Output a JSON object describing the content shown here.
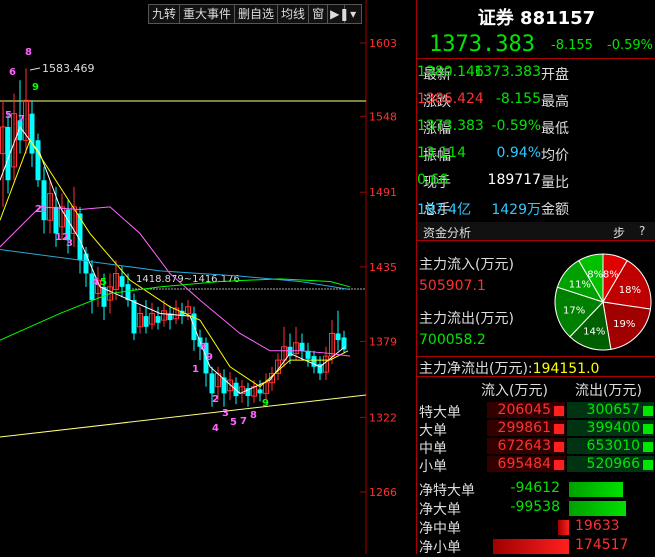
{
  "toolbar": {
    "items": [
      "九转",
      "重大事件",
      "删自选",
      "均线",
      "窗"
    ]
  },
  "chart": {
    "y_ticks": [
      "1603",
      "1548",
      "1491",
      "1435",
      "1379",
      "1322",
      "1266"
    ],
    "high_label": "1583.469",
    "range_label": "1418.879~1416.176",
    "nine_turn_labels": [
      "6",
      "8",
      "5",
      "7",
      "9",
      "1",
      "2",
      "12",
      "3",
      "4",
      "5",
      "8",
      "9",
      "1",
      "2",
      "3",
      "4",
      "5",
      "7",
      "8",
      "9"
    ],
    "colors": {
      "up": "#ff3333",
      "down": "#00ffff",
      "ma5": "#ffffff",
      "ma10": "#ffff00",
      "ma20": "#ff66ff",
      "ma30": "#00ff00",
      "ma60": "#2aa8d8",
      "support": "#ffff80"
    }
  },
  "quote": {
    "title": "证券 881157",
    "price": "1373.383",
    "change": "-8.155",
    "change_pct": "-0.59%",
    "rows": [
      {
        "l1": "最新",
        "v1": "1373.383",
        "l2": "开盘",
        "v2": "1380.146",
        "c1": "green",
        "c2": "green"
      },
      {
        "l1": "涨跌",
        "v1": "-8.155",
        "l2": "最高",
        "v2": "1386.424",
        "c1": "green",
        "c2": "red"
      },
      {
        "l1": "涨幅",
        "v1": "-0.59%",
        "l2": "最低",
        "v2": "1373.383",
        "c1": "green",
        "c2": "green"
      },
      {
        "l1": "振幅",
        "v1": "0.94%",
        "l2": "均价",
        "v2": "13.114",
        "c1": "cyan",
        "c2": "green"
      },
      {
        "l1": "现手",
        "v1": "189717",
        "l2": "量比",
        "v2": "0.66",
        "c1": "white",
        "c2": "green"
      },
      {
        "l1": "总手",
        "v1": "1429万",
        "l2": "金额",
        "v2": "187.4亿",
        "c1": "cyan",
        "c2": "cyan"
      }
    ]
  },
  "fund": {
    "tab_label": "资金分析",
    "tab_right1": "步",
    "tab_right2": "?",
    "inflow_label": "主力流入(万元)",
    "inflow_value": "505907.1",
    "outflow_label": "主力流出(万元)",
    "outflow_value": "700058.2",
    "net_label": "主力净流出(万元):",
    "net_value": "194151.0",
    "pie": [
      {
        "label": "8%",
        "value": 8,
        "color": "#e00000"
      },
      {
        "label": "18%",
        "value": 18,
        "color": "#c00000"
      },
      {
        "label": "19%",
        "value": 19,
        "color": "#a00000"
      },
      {
        "label": "14%",
        "value": 14,
        "color": "#006000"
      },
      {
        "label": "17%",
        "value": 17,
        "color": "#008000"
      },
      {
        "label": "11%",
        "value": 11,
        "color": "#00a000"
      },
      {
        "label": "8%",
        "value": 8,
        "color": "#00c000"
      }
    ],
    "table_headers": [
      "流入(万元)",
      "流出(万元)"
    ],
    "table_rows": [
      {
        "label": "特大单",
        "in": "206045",
        "out": "300657"
      },
      {
        "label": "大单",
        "in": "299861",
        "out": "399400"
      },
      {
        "label": "中单",
        "in": "672643",
        "out": "653010"
      },
      {
        "label": "小单",
        "in": "695484",
        "out": "520966"
      }
    ],
    "net_rows": [
      {
        "label": "净特大单",
        "value": "-94612"
      },
      {
        "label": "净大单",
        "value": "-99538"
      },
      {
        "label": "净中单",
        "value": "19633"
      },
      {
        "label": "净小单",
        "value": "174517"
      }
    ]
  }
}
